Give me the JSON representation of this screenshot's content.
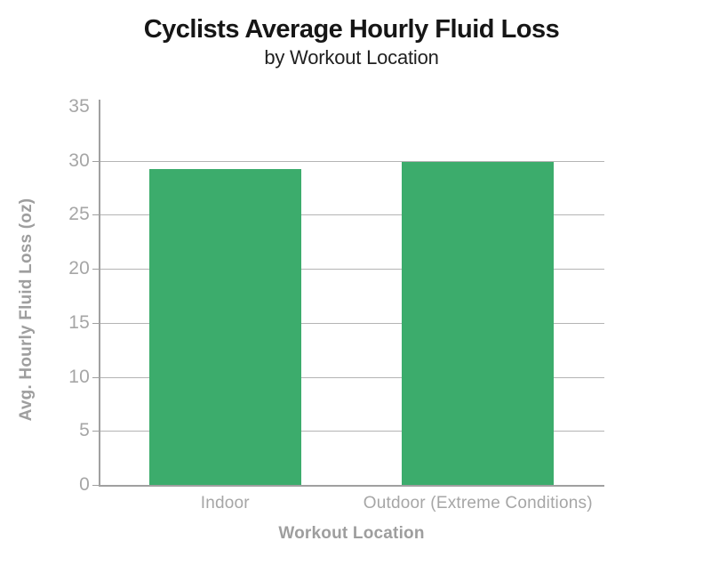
{
  "header": {
    "title": "Cyclists Average Hourly Fluid Loss",
    "subtitle": "by Workout Location"
  },
  "chart_data": {
    "type": "bar",
    "categories": [
      "Indoor",
      "Outdoor (Extreme Conditions)"
    ],
    "values": [
      29.2,
      29.9
    ],
    "title": "Cyclists Average Hourly Fluid Loss",
    "subtitle": "by Workout Location",
    "xlabel": "Workout Location",
    "ylabel": "Avg. Hourly Fluid Loss (oz)",
    "ylim": [
      0,
      35
    ],
    "ytick_step": 5,
    "ytick_labels": [
      "0",
      "5",
      "10",
      "15",
      "20",
      "25",
      "30",
      "35"
    ],
    "grid": "horizontal-only, no gridline at 0 or 35",
    "legend_position": "none",
    "colors": {
      "bar": "#3cac6c",
      "gridline": "#b4b4b4",
      "axis": "#a0a0a0",
      "tick_label": "#a6a6a6",
      "axis_title": "#9e9e9e",
      "title_text": "#161616",
      "background": "#ffffff"
    }
  }
}
